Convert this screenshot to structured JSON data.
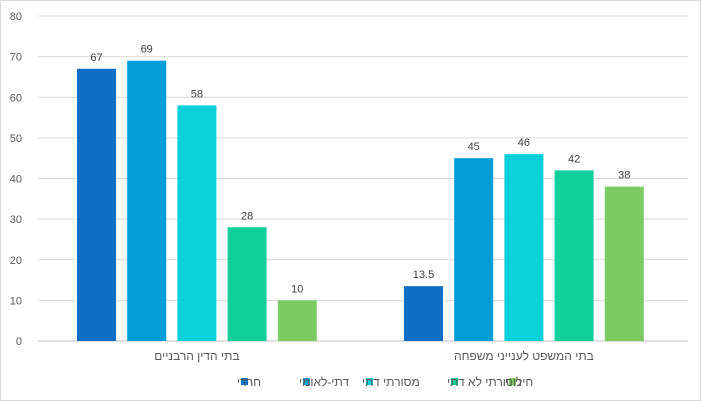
{
  "chart_data": {
    "type": "bar",
    "categories": [
      "בתי הדין הרבניים",
      "בתי המשפט לענייני משפחה"
    ],
    "series": [
      {
        "name": "חרדי",
        "values": [
          67,
          13.5
        ],
        "color": "#0F6FC6"
      },
      {
        "name": "דתי-לאומי",
        "values": [
          69,
          45
        ],
        "color": "#009DD9"
      },
      {
        "name": "מסורתי דתי",
        "values": [
          58,
          46
        ],
        "color": "#0BD0D9"
      },
      {
        "name": "מסורתי לא דתי",
        "values": [
          28,
          42
        ],
        "color": "#10CF9B"
      },
      {
        "name": "חילוני",
        "values": [
          10,
          38
        ],
        "color": "#7CCA62"
      }
    ],
    "data_labels": [
      [
        "67",
        "13.5"
      ],
      [
        "69",
        "45"
      ],
      [
        "58",
        "46"
      ],
      [
        "28",
        "42"
      ],
      [
        "10",
        "38"
      ]
    ],
    "y_ticks": [
      "0",
      "10",
      "20",
      "30",
      "40",
      "50",
      "60",
      "70",
      "80"
    ],
    "ylim": [
      0,
      80
    ],
    "grid": true,
    "legend_position": "bottom",
    "title": "",
    "xlabel": "",
    "ylabel": ""
  }
}
